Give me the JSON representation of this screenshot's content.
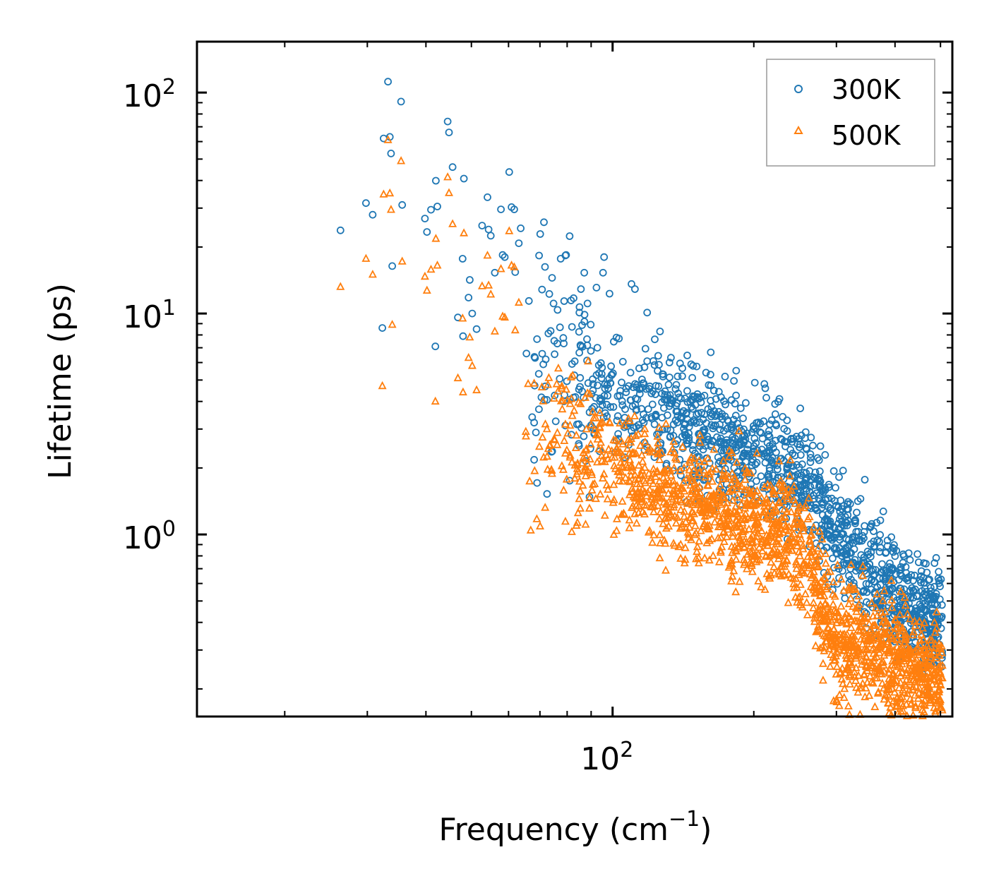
{
  "chart_data": {
    "type": "scatter",
    "xscale": "log",
    "yscale": "log",
    "xlabel": "Frequency (cm",
    "xlabel_sup": "−1",
    "xlabel_close": ")",
    "ylabel": "Lifetime (ps)",
    "xlim": [
      13,
      530
    ],
    "ylim": [
      0.15,
      170
    ],
    "x_major_ticks": [
      {
        "value": 100,
        "base": "10",
        "exp": "2"
      }
    ],
    "y_major_ticks": [
      {
        "value": 1,
        "base": "10",
        "exp": "0"
      },
      {
        "value": 10,
        "base": "10",
        "exp": "1"
      },
      {
        "value": 100,
        "base": "10",
        "exp": "2"
      }
    ],
    "legend": {
      "position": "top-right",
      "entries": [
        {
          "label": "300K",
          "marker": "circle",
          "color": "#1f77b4"
        },
        {
          "label": "500K",
          "marker": "triangle",
          "color": "#ff7f0e"
        }
      ]
    },
    "series": [
      {
        "name": "300K",
        "marker": "circle",
        "color": "#1f77b4",
        "outlier_points": [
          [
            26.3,
            23.8
          ],
          [
            29.8,
            31.6
          ],
          [
            30.8,
            28.0
          ],
          [
            32.3,
            8.6
          ],
          [
            32.5,
            62
          ],
          [
            33.2,
            112
          ],
          [
            33.5,
            63
          ],
          [
            33.7,
            53
          ],
          [
            33.9,
            16.4
          ],
          [
            35.4,
            91
          ],
          [
            35.6,
            31
          ],
          [
            39.8,
            26.9
          ],
          [
            40.2,
            23.4
          ],
          [
            41.0,
            29.5
          ],
          [
            41.9,
            7.1
          ],
          [
            42.0,
            39.9
          ],
          [
            42.3,
            30.5
          ],
          [
            44.5,
            74
          ],
          [
            44.8,
            66
          ],
          [
            45.6,
            46
          ],
          [
            46.8,
            9.6
          ],
          [
            47.9,
            17.7
          ],
          [
            48.0,
            7.9
          ],
          [
            48.2,
            40.8
          ],
          [
            49.3,
            11.8
          ],
          [
            49.6,
            14.2
          ],
          [
            50.2,
            10.0
          ],
          [
            51.3,
            8.5
          ],
          [
            52.7,
            25
          ],
          [
            54.1,
            33.6
          ],
          [
            54.4,
            24.0
          ],
          [
            55.0,
            22.5
          ],
          [
            56.1,
            15.3
          ],
          [
            57.8,
            29.6
          ],
          [
            58.3,
            18.4
          ],
          [
            58.9,
            18.0
          ],
          [
            60.2,
            43.7
          ],
          [
            60.9,
            30.3
          ],
          [
            61.7,
            29.6
          ],
          [
            62.0,
            15.4
          ],
          [
            63.1,
            20.8
          ],
          [
            63.7,
            24.3
          ],
          [
            66.3,
            11.4
          ],
          [
            69.7,
            18.3
          ],
          [
            70.1,
            22.9
          ],
          [
            71.4,
            25.9
          ],
          [
            74.3,
            14.5
          ],
          [
            77.5,
            17.7
          ],
          [
            79.6,
            18.4
          ],
          [
            81.0,
            22.4
          ],
          [
            85.6,
            12.9
          ],
          [
            87.0,
            15.3
          ],
          [
            88.4,
            11.1
          ],
          [
            92.4,
            13.1
          ],
          [
            95.4,
            15.3
          ],
          [
            95.9,
            18.0
          ],
          [
            98.5,
            12.3
          ],
          [
            109.7,
            13.6
          ],
          [
            111.6,
            12.9
          ],
          [
            118.5,
            10.1
          ],
          [
            126.2,
            8.3
          ],
          [
            148.4,
            5.8
          ],
          [
            158.2,
            5.4
          ],
          [
            210.6,
            4.8
          ]
        ],
        "trend": [
          [
            65,
            5.0
          ],
          [
            80,
            5.2
          ],
          [
            100,
            4.2
          ],
          [
            130,
            3.4
          ],
          [
            160,
            2.8
          ],
          [
            200,
            2.3
          ],
          [
            230,
            2.0
          ],
          [
            260,
            1.7
          ],
          [
            300,
            1.0
          ],
          [
            350,
            0.75
          ],
          [
            400,
            0.55
          ],
          [
            450,
            0.45
          ],
          [
            500,
            0.38
          ]
        ],
        "n_cloud": 1400
      },
      {
        "name": "500K",
        "marker": "triangle",
        "color": "#ff7f0e",
        "outlier_points": [
          [
            26.3,
            13.2
          ],
          [
            29.8,
            17.7
          ],
          [
            30.8,
            15.0
          ],
          [
            32.3,
            4.7
          ],
          [
            32.5,
            34.6
          ],
          [
            33.2,
            61
          ],
          [
            33.5,
            35
          ],
          [
            33.7,
            29.5
          ],
          [
            33.9,
            8.9
          ],
          [
            35.4,
            49
          ],
          [
            35.6,
            17.2
          ],
          [
            39.8,
            14.7
          ],
          [
            40.2,
            12.7
          ],
          [
            41.0,
            15.8
          ],
          [
            41.9,
            4.0
          ],
          [
            42.0,
            21.8
          ],
          [
            42.3,
            16.5
          ],
          [
            44.5,
            41.4
          ],
          [
            44.8,
            35.1
          ],
          [
            45.6,
            25.4
          ],
          [
            46.8,
            5.1
          ],
          [
            47.9,
            9.5
          ],
          [
            48.0,
            4.4
          ],
          [
            48.2,
            23.1
          ],
          [
            49.3,
            6.3
          ],
          [
            49.6,
            7.8
          ],
          [
            50.2,
            5.8
          ],
          [
            51.3,
            4.5
          ],
          [
            52.7,
            13.3
          ],
          [
            54.1,
            18.3
          ],
          [
            54.4,
            13.4
          ],
          [
            55.0,
            12.2
          ],
          [
            56.1,
            8.3
          ],
          [
            57.8,
            15.9
          ],
          [
            58.3,
            9.7
          ],
          [
            58.9,
            9.6
          ],
          [
            60.2,
            23.6
          ],
          [
            60.9,
            16.5
          ],
          [
            61.7,
            16.2
          ],
          [
            62.0,
            8.4
          ],
          [
            63.1,
            11.2
          ]
        ],
        "trend": [
          [
            65,
            3.0
          ],
          [
            75,
            2.8
          ],
          [
            100,
            2.0
          ],
          [
            130,
            1.5
          ],
          [
            160,
            1.3
          ],
          [
            200,
            1.15
          ],
          [
            230,
            1.0
          ],
          [
            260,
            0.8
          ],
          [
            300,
            0.32
          ],
          [
            350,
            0.3
          ],
          [
            400,
            0.27
          ],
          [
            450,
            0.24
          ],
          [
            500,
            0.22
          ]
        ],
        "n_cloud": 1700
      }
    ]
  }
}
